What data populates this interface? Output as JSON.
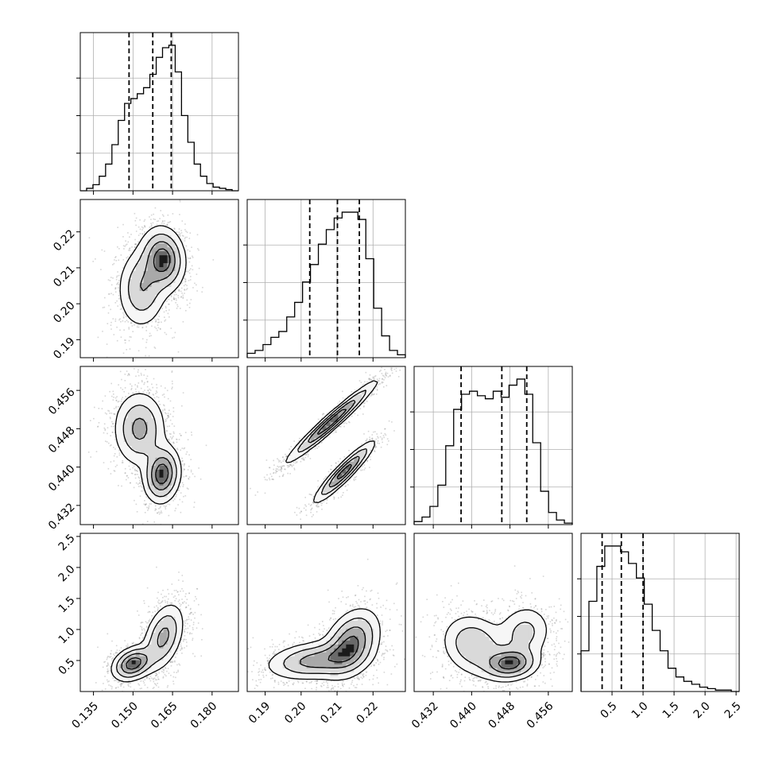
{
  "chart_data": {
    "type": "corner",
    "grid": true,
    "colors": {
      "line": "#000000",
      "points": "#8a8a8a",
      "grid": "#b0b0b0"
    },
    "parameters": [
      {
        "range": [
          0.13,
          0.19
        ],
        "ticks": [
          0.135,
          0.15,
          0.165,
          0.18
        ],
        "tick_labels": [
          "0.135",
          "0.150",
          "0.165",
          "0.180"
        ],
        "quantiles": [
          0.1485,
          0.1575,
          0.1645
        ],
        "histogram": [
          0,
          2,
          5,
          12,
          22,
          38,
          58,
          72,
          76,
          80,
          85,
          96,
          110,
          118,
          120,
          98,
          62,
          40,
          22,
          12,
          6,
          3,
          2,
          1,
          0
        ]
      },
      {
        "range": [
          0.185,
          0.229
        ],
        "ticks": [
          0.19,
          0.2,
          0.21,
          0.22
        ],
        "tick_labels": [
          "0.19",
          "0.20",
          "0.21",
          "0.22"
        ],
        "quantiles": [
          0.2024,
          0.2101,
          0.2162
        ],
        "histogram": [
          3,
          5,
          9,
          14,
          18,
          28,
          38,
          52,
          64,
          78,
          88,
          96,
          100,
          100,
          95,
          68,
          34,
          15,
          5,
          2
        ]
      },
      {
        "range": [
          0.428,
          0.461
        ],
        "ticks": [
          0.432,
          0.44,
          0.448,
          0.456
        ],
        "tick_labels": [
          "0.432",
          "0.440",
          "0.448",
          "0.456"
        ],
        "quantiles": [
          0.4378,
          0.4463,
          0.4515
        ],
        "histogram": [
          2,
          5,
          12,
          26,
          52,
          76,
          86,
          88,
          85,
          83,
          88,
          84,
          92,
          96,
          86,
          54,
          22,
          8,
          3,
          1
        ]
      },
      {
        "range": [
          0.0,
          2.55
        ],
        "ticks": [
          0.5,
          1.0,
          1.5,
          2.0,
          2.5
        ],
        "tick_labels": [
          "0.5",
          "1.0",
          "1.5",
          "2.0",
          "2.5"
        ],
        "y_tick_labels": [
          "0.5",
          "1.0",
          "1.5",
          "2.0",
          "2.5"
        ],
        "quantiles": [
          0.34,
          0.65,
          1.0
        ],
        "histogram": [
          28,
          62,
          86,
          100,
          100,
          96,
          88,
          78,
          60,
          42,
          28,
          16,
          10,
          7,
          5,
          3,
          2,
          1,
          1,
          0
        ]
      }
    ],
    "y_tick_labels_rows": [
      [
        "0.22",
        "0.21",
        "0.20",
        "0.19"
      ],
      [
        "0.456",
        "0.448",
        "0.440",
        "0.432"
      ],
      [
        "2.5",
        "2.0",
        "1.5",
        "1.0",
        "0.5"
      ]
    ],
    "clusters": [
      {
        "components": [
          {
            "mean": [
              0.1535,
              0.2045
            ],
            "sd": [
              0.0048,
              0.0058
            ],
            "rho": 0.05,
            "weight": 0.46
          },
          {
            "mean": [
              0.1615,
              0.2125
            ],
            "sd": [
              0.0042,
              0.0045
            ],
            "rho": -0.1,
            "weight": 0.54
          }
        ]
      },
      {
        "components": [
          {
            "mean": [
              0.1525,
              0.448
            ],
            "sd": [
              0.005,
              0.004
            ],
            "rho": 0.0,
            "weight": 0.55
          },
          {
            "mean": [
              0.161,
              0.4385
            ],
            "sd": [
              0.0035,
              0.003
            ],
            "rho": 0.1,
            "weight": 0.45
          }
        ]
      },
      {
        "components": [
          {
            "mean": [
              0.2085,
              0.4495
            ],
            "sd": [
              0.0062,
              0.0042
            ],
            "rho": 0.97,
            "weight": 0.58
          },
          {
            "mean": [
              0.212,
              0.439
            ],
            "sd": [
              0.0042,
              0.0032
            ],
            "rho": 0.93,
            "weight": 0.42
          }
        ]
      },
      {
        "components": [
          {
            "mean": [
              0.15,
              0.45
            ],
            "sd": [
              0.004,
              0.14
            ],
            "rho": 0.3,
            "weight": 0.45
          },
          {
            "mean": [
              0.1615,
              0.88
            ],
            "sd": [
              0.004,
              0.28
            ],
            "rho": 0.4,
            "weight": 0.55
          }
        ]
      },
      {
        "components": [
          {
            "mean": [
              0.204,
              0.5
            ],
            "sd": [
              0.007,
              0.16
            ],
            "rho": 0.25,
            "weight": 0.45
          },
          {
            "mean": [
              0.214,
              0.78
            ],
            "sd": [
              0.004,
              0.28
            ],
            "rho": 0.35,
            "weight": 0.55
          }
        ]
      },
      {
        "components": [
          {
            "mean": [
              0.4405,
              0.75
            ],
            "sd": [
              0.0035,
              0.26
            ],
            "rho": -0.15,
            "weight": 0.42
          },
          {
            "mean": [
              0.448,
              0.45
            ],
            "sd": [
              0.003,
              0.14
            ],
            "rho": 0.1,
            "weight": 0.34
          },
          {
            "mean": [
              0.451,
              0.95
            ],
            "sd": [
              0.003,
              0.24
            ],
            "rho": 0.1,
            "weight": 0.24
          }
        ]
      }
    ]
  }
}
